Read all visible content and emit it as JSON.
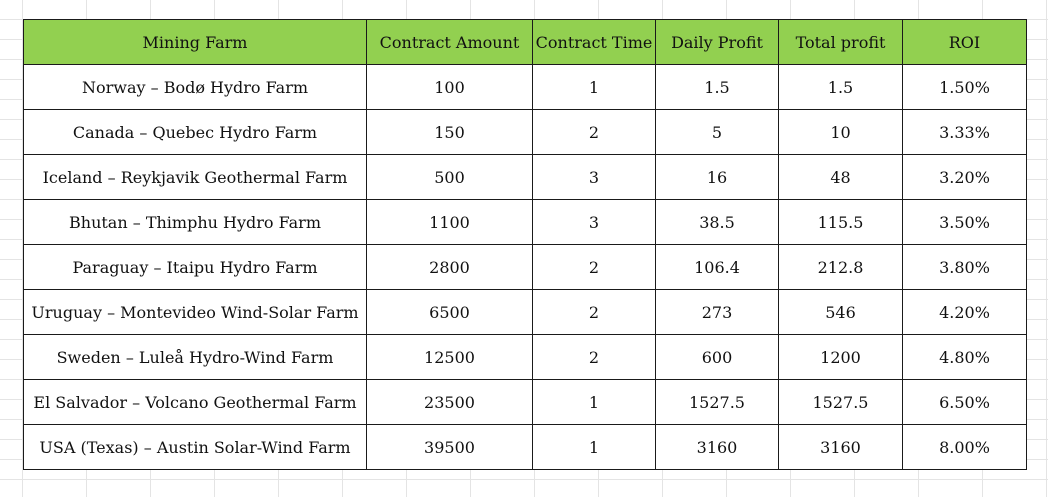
{
  "colors": {
    "header_fill": "#92d050",
    "border": "#1a1a1a",
    "sheet_gridline": "#e4e4e4"
  },
  "table": {
    "headers": [
      "Mining Farm",
      "Contract Amount",
      "Contract Time",
      "Daily Profit",
      "Total profit",
      "ROI"
    ],
    "rows": [
      [
        "Norway – Bodø Hydro Farm",
        "100",
        "1",
        "1.5",
        "1.5",
        "1.50%"
      ],
      [
        "Canada – Quebec Hydro Farm",
        "150",
        "2",
        "5",
        "10",
        "3.33%"
      ],
      [
        "Iceland – Reykjavik Geothermal Farm",
        "500",
        "3",
        "16",
        "48",
        "3.20%"
      ],
      [
        "Bhutan – Thimphu Hydro Farm",
        "1100",
        "3",
        "38.5",
        "115.5",
        "3.50%"
      ],
      [
        "Paraguay – Itaipu Hydro Farm",
        "2800",
        "2",
        "106.4",
        "212.8",
        "3.80%"
      ],
      [
        "Uruguay – Montevideo Wind-Solar Farm",
        "6500",
        "2",
        "273",
        "546",
        "4.20%"
      ],
      [
        "Sweden – Luleå Hydro-Wind Farm",
        "12500",
        "2",
        "600",
        "1200",
        "4.80%"
      ],
      [
        "El Salvador – Volcano Geothermal Farm",
        "23500",
        "1",
        "1527.5",
        "1527.5",
        "6.50%"
      ],
      [
        "USA (Texas) – Austin Solar-Wind Farm",
        "39500",
        "1",
        "3160",
        "3160",
        "8.00%"
      ]
    ]
  }
}
